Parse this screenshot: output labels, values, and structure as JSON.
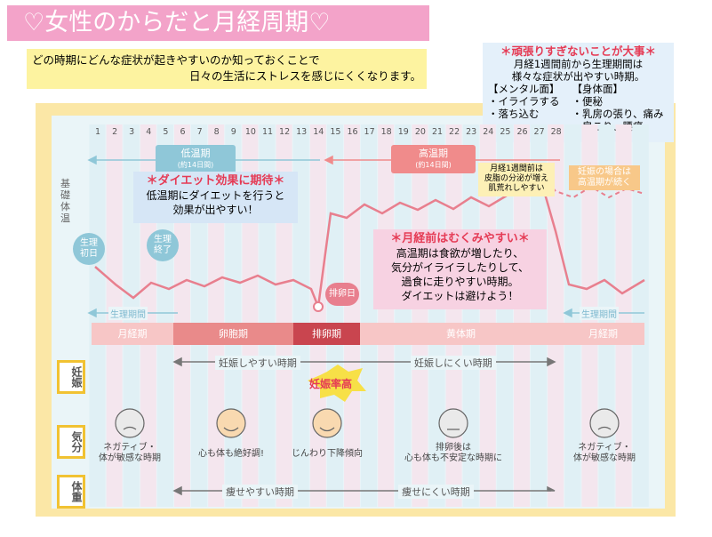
{
  "title": "♡女性のからだと月経周期♡",
  "intro": [
    "どの時期にどんな症状が起きやすいのか知っておくことで",
    "日々の生活にストレスを感じにくくなります。"
  ],
  "tip": {
    "title": "＊頑張りすぎないことが大事＊",
    "lines": [
      "月経1週間前から生理期間は",
      "様々な症状が出やすい時期。"
    ],
    "mental": {
      "header": "【メンタル面】",
      "items": [
        "・イライラする",
        "・落ち込む"
      ]
    },
    "physical": {
      "header": "【身体面】",
      "items": [
        "・便秘",
        "・乳房の張り、痛み",
        "・肩こり、腰痛"
      ]
    }
  },
  "days": [
    1,
    2,
    3,
    4,
    5,
    6,
    7,
    8,
    9,
    10,
    11,
    12,
    13,
    14,
    15,
    16,
    17,
    18,
    19,
    20,
    21,
    22,
    23,
    24,
    25,
    26,
    27,
    28
  ],
  "temp_label": "基礎体温",
  "low": {
    "name": "低温期",
    "span": "(約14日間)"
  },
  "high": {
    "name": "高温期",
    "span": "(約14日間)"
  },
  "diet": {
    "title": "＊ダイエット効果に期待＊",
    "lines": [
      "低温期にダイエットを行うと",
      "効果が出やすい！"
    ]
  },
  "swelling": {
    "title": "＊月経前はむくみやすい＊",
    "lines": [
      "高温期は食欲が増したり、",
      "気分がイライラしたりして、",
      "過食に走りやすい時期。",
      "ダイエットは避けよう！"
    ]
  },
  "period_start": [
    "生理",
    "初日"
  ],
  "period_end": [
    "生理",
    "終了"
  ],
  "ovulation_day": "排卵日",
  "skin_note": [
    "月経1週間前は",
    "皮脂の分泌が増え",
    "肌荒れしやすい"
  ],
  "pregnancy_note": [
    "妊娠の場合は",
    "高温期が続く"
  ],
  "period_span": [
    "生理期間",
    "生理期間"
  ],
  "phases": [
    "月経期",
    "卵胞期",
    "排卵期",
    "黄体期",
    "月経期"
  ],
  "pregnancy": {
    "label": "妊娠",
    "easy": "妊娠しやすい時期",
    "hard": "妊娠しにくい時期",
    "peak": "妊娠率高"
  },
  "mood": {
    "label": "気分",
    "items": [
      [
        "ネガティブ・",
        "体が敏感な時期"
      ],
      [
        "心も体も絶好調!"
      ],
      [
        "じんわり下降傾向"
      ],
      [
        "排卵後は",
        "心も体も不安定な時期に"
      ],
      [
        "ネガティブ・",
        "体が敏感な時期"
      ]
    ]
  },
  "weight": {
    "label": "体重",
    "easy": "痩せやすい時期",
    "hard": "痩せにくい時期"
  }
}
